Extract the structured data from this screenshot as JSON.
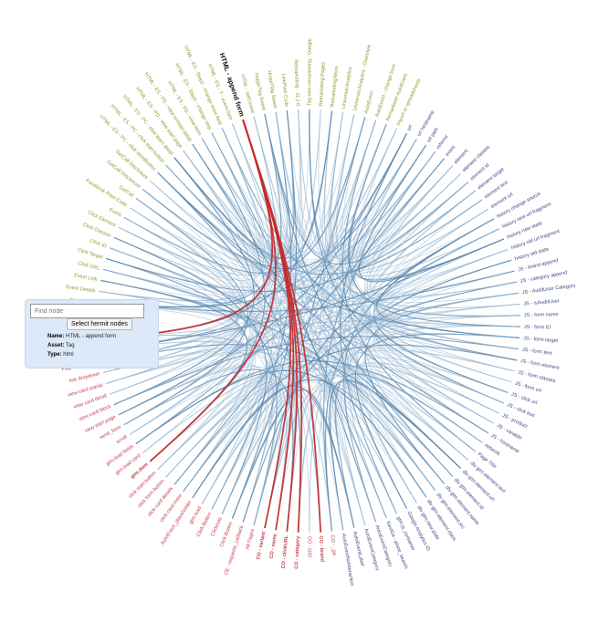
{
  "colors": {
    "top": "#8c9a2e",
    "left": "#c43c4c",
    "bottom": "#3d4b86",
    "link": "#8fb2cf",
    "linkDark": "#4f7fa8",
    "highlight": "#c42a2a",
    "selectedLabel": "#111111"
  },
  "panel": {
    "search_placeholder": "Find node",
    "button_label": "Select hermit nodes",
    "name_label": "Name:",
    "name_value": "HTML - append form",
    "asset_label": "Asset:",
    "asset_value": "Tag",
    "type_label": "Type:",
    "type_value": "html"
  },
  "selected_node": "HTML - append form",
  "nodes": [
    {
      "id": "Event URL",
      "group": "top"
    },
    {
      "id": "Event Details",
      "group": "top"
    },
    {
      "id": "Event Link",
      "group": "top"
    },
    {
      "id": "Click URL",
      "group": "top"
    },
    {
      "id": "Click Target",
      "group": "top"
    },
    {
      "id": "Click ID",
      "group": "top"
    },
    {
      "id": "Click Classes",
      "group": "top"
    },
    {
      "id": "Click Element",
      "group": "top"
    },
    {
      "id": "Event",
      "group": "top"
    },
    {
      "id": "Facebook Pixel Code",
      "group": "top"
    },
    {
      "id": "GetCall",
      "group": "top"
    },
    {
      "id": "GetCall Disclosure",
      "group": "top"
    },
    {
      "id": "GetCall Disclosure",
      "group": "top"
    },
    {
      "id": "HTML - ES - PC - click sendButton",
      "group": "top"
    },
    {
      "id": "HTML - ES - PC - click start button",
      "group": "top"
    },
    {
      "id": "HTML - ES - PC - click learn detail",
      "group": "top"
    },
    {
      "id": "HTML - ES - PD - view start page",
      "group": "top"
    },
    {
      "id": "HTML - ES - PD - view contact detail",
      "group": "top"
    },
    {
      "id": "HTML - ES - PD - view form",
      "group": "top"
    },
    {
      "id": "HTML - ES - Step1 - change step",
      "group": "top"
    },
    {
      "id": "HTML - ES - Step2 - change store field",
      "group": "top"
    },
    {
      "id": "HTML - ES - T - event form",
      "group": "top"
    },
    {
      "id": "HTML - append form",
      "group": "top"
    },
    {
      "id": "HTML - setCookie",
      "group": "top"
    },
    {
      "id": "Hotjar/Tag Sweet",
      "group": "top"
    },
    {
      "id": "Hotjar/Tag Sweet",
      "group": "top"
    },
    {
      "id": "LinkPixel Code",
      "group": "top"
    },
    {
      "id": "Remarketing - 11.1.0",
      "group": "top"
    },
    {
      "id": "Tag new remarketing - Google",
      "group": "top"
    },
    {
      "id": "Remarketing Pages",
      "group": "top"
    },
    {
      "id": "Remarketing/More",
      "group": "top"
    },
    {
      "id": "Universal Analytics",
      "group": "top"
    },
    {
      "id": "Universal Analytics - Overview",
      "group": "top"
    },
    {
      "id": "AutoEvent",
      "group": "top"
    },
    {
      "id": "AutoEvent - change form",
      "group": "top"
    },
    {
      "id": "Remarketer AutoEvent",
      "group": "top"
    },
    {
      "id": "import to spreadsheets",
      "group": "top"
    },
    {
      "id": "url",
      "group": "bottom"
    },
    {
      "id": "url hostname",
      "group": "bottom"
    },
    {
      "id": "url path",
      "group": "bottom"
    },
    {
      "id": "referrer",
      "group": "bottom"
    },
    {
      "id": "event",
      "group": "bottom"
    },
    {
      "id": "element",
      "group": "bottom"
    },
    {
      "id": "element classes",
      "group": "bottom"
    },
    {
      "id": "element id",
      "group": "bottom"
    },
    {
      "id": "element target",
      "group": "bottom"
    },
    {
      "id": "element text",
      "group": "bottom"
    },
    {
      "id": "element url",
      "group": "bottom"
    },
    {
      "id": "history change source",
      "group": "bottom"
    },
    {
      "id": "history new url fragment",
      "group": "bottom"
    },
    {
      "id": "history new state",
      "group": "bottom"
    },
    {
      "id": "history old url fragment",
      "group": "bottom"
    },
    {
      "id": "history old state",
      "group": "bottom"
    },
    {
      "id": "JS - brand append",
      "group": "bottom"
    },
    {
      "id": "JS - category append",
      "group": "bottom"
    },
    {
      "id": "JS - AuditUser Category",
      "group": "bottom"
    },
    {
      "id": "JS - isAuditUser",
      "group": "bottom"
    },
    {
      "id": "JS - form name",
      "group": "bottom"
    },
    {
      "id": "JS - form ID",
      "group": "bottom"
    },
    {
      "id": "JS - form target",
      "group": "bottom"
    },
    {
      "id": "JS - form text",
      "group": "bottom"
    },
    {
      "id": "JS - form element",
      "group": "bottom"
    },
    {
      "id": "JS - form classes",
      "group": "bottom"
    },
    {
      "id": "JS - form url",
      "group": "bottom"
    },
    {
      "id": "JS - click url",
      "group": "bottom"
    },
    {
      "id": "JS - click text",
      "group": "bottom"
    },
    {
      "id": "JS - product",
      "group": "bottom"
    },
    {
      "id": "JS - variable",
      "group": "bottom"
    },
    {
      "id": "JS - hostname",
      "group": "bottom"
    },
    {
      "id": "network",
      "group": "bottom"
    },
    {
      "id": "Page Title",
      "group": "bottom"
    },
    {
      "id": "dlv gtm.element.text",
      "group": "bottom"
    },
    {
      "id": "dlv gtm.element.url",
      "group": "bottom"
    },
    {
      "id": "dlv gtm.element.id",
      "group": "bottom"
    },
    {
      "id": "dlv gtm.element.name",
      "group": "bottom"
    },
    {
      "id": "dlv gtm.element.src",
      "group": "bottom"
    },
    {
      "id": "dlv gtm.element.class",
      "group": "bottom"
    },
    {
      "id": "dlv gtm.new.state",
      "group": "bottom"
    },
    {
      "id": "Google Analytics ID",
      "group": "bottom"
    },
    {
      "id": "gtm.js_container",
      "group": "bottom"
    },
    {
      "id": "NaviGa - place_search",
      "group": "bottom"
    },
    {
      "id": "AutoEventCategory",
      "group": "bottom"
    },
    {
      "id": "AutoEventCategory",
      "group": "bottom"
    },
    {
      "id": "AutoEventLabel",
      "group": "bottom"
    },
    {
      "id": "AutoEventNoInteraction",
      "group": "bottom"
    },
    {
      "id": "CO - _ga",
      "group": "left"
    },
    {
      "id": "CO - brand",
      "group": "left"
    },
    {
      "id": "CO - GID",
      "group": "left"
    },
    {
      "id": "CO - category",
      "group": "left"
    },
    {
      "id": "CO - clickURL",
      "group": "left"
    },
    {
      "id": "CO - name",
      "group": "left"
    },
    {
      "id": "CO - variant",
      "group": "left"
    },
    {
      "id": "All Pages",
      "group": "left"
    },
    {
      "id": "CE - requests_callback",
      "group": "left"
    },
    {
      "id": "Click Button",
      "group": "left"
    },
    {
      "id": "Clickouts",
      "group": "left"
    },
    {
      "id": "Click Button",
      "group": "left"
    },
    {
      "id": "gtm.load",
      "group": "left"
    },
    {
      "id": "AutoEvent_placeholder",
      "group": "left"
    },
    {
      "id": "click card more",
      "group": "left"
    },
    {
      "id": "click card details",
      "group": "left"
    },
    {
      "id": "click form button",
      "group": "left"
    },
    {
      "id": "click start button",
      "group": "left"
    },
    {
      "id": "gtm.dom",
      "group": "left"
    },
    {
      "id": "gtm.load card",
      "group": "left"
    },
    {
      "id": "gtm.load fields",
      "group": "left"
    },
    {
      "id": "scroll",
      "group": "left"
    },
    {
      "id": "send_form",
      "group": "left"
    },
    {
      "id": "view start page",
      "group": "left"
    },
    {
      "id": "view card block",
      "group": "left"
    },
    {
      "id": "view card detail",
      "group": "left"
    },
    {
      "id": "view card popup",
      "group": "left"
    },
    {
      "id": "link dropdown",
      "group": "left"
    },
    {
      "id": "Page Pathname",
      "group": "left"
    },
    {
      "id": "Page Path",
      "group": "left"
    },
    {
      "id": "Page URL",
      "group": "left"
    }
  ],
  "highlight_links": [
    [
      "HTML - append form",
      "Page URL"
    ],
    [
      "HTML - append form",
      "gtm.dom"
    ],
    [
      "HTML - append form",
      "CO - variant"
    ],
    [
      "HTML - append form",
      "CO - name"
    ],
    [
      "HTML - append form",
      "CO - clickURL"
    ],
    [
      "HTML - append form",
      "CO - category"
    ],
    [
      "HTML - append form",
      "CO - brand"
    ]
  ]
}
